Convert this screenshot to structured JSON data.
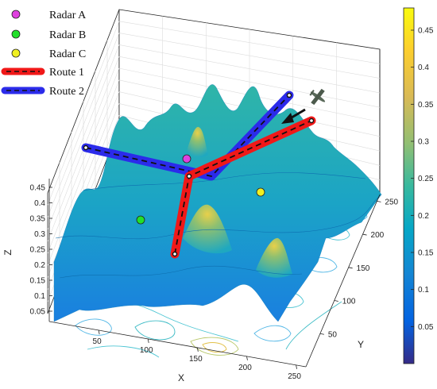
{
  "chart_data": {
    "type": "surface",
    "title": "",
    "xlabel": "X",
    "ylabel": "Y",
    "zlabel": "Z",
    "xlim": [
      0,
      260
    ],
    "ylim": [
      0,
      260
    ],
    "zlim": [
      0,
      0.48
    ],
    "x_ticks": [
      "50",
      "100",
      "150",
      "200",
      "250"
    ],
    "y_ticks": [
      "50",
      "100",
      "150",
      "200",
      "250"
    ],
    "z_ticks": [
      "0.05",
      "0.1",
      "0.15",
      "0.2",
      "0.25",
      "0.3",
      "0.35",
      "0.4",
      "0.45"
    ],
    "colorbar": {
      "range": [
        0,
        0.48
      ],
      "ticks": [
        "0.05",
        "0.1",
        "0.15",
        "0.2",
        "0.25",
        "0.3",
        "0.35",
        "0.4",
        "0.45"
      ],
      "colormap": "parula"
    },
    "grid": true,
    "contour_base": true,
    "legend": {
      "placement": "top-left",
      "entries": [
        {
          "label": "Radar A",
          "marker": "circle",
          "color": "#e040e0"
        },
        {
          "label": "Radar B",
          "marker": "circle",
          "color": "#22e02a"
        },
        {
          "label": "Radar C",
          "marker": "circle",
          "color": "#f0f020"
        },
        {
          "label": "Route 1",
          "style": "dashed-on-band",
          "color": "#f01818"
        },
        {
          "label": "Route 2",
          "style": "dashed-on-band",
          "color": "#2b2bea"
        }
      ]
    },
    "radars": [
      {
        "name": "Radar A",
        "x": 130,
        "y": 200,
        "z": 0.33
      },
      {
        "name": "Radar B",
        "x": 95,
        "y": 120,
        "z": 0.3
      },
      {
        "name": "Radar C",
        "x": 210,
        "y": 190,
        "z": 0.27
      }
    ],
    "routes": [
      {
        "name": "Route 1",
        "points": [
          [
            95,
            85,
            0.21
          ],
          [
            118,
            140,
            0.33
          ],
          [
            218,
            232,
            0.4
          ]
        ]
      },
      {
        "name": "Route 2",
        "points": [
          [
            5,
            230,
            0.38
          ],
          [
            150,
            200,
            0.33
          ],
          [
            178,
            262,
            0.44
          ]
        ]
      }
    ],
    "peaks": [
      {
        "x": 118,
        "y": 120,
        "z": 0.38
      },
      {
        "x": 150,
        "y": 60,
        "z": 0.3
      },
      {
        "x": 145,
        "y": 190,
        "z": 0.32
      }
    ]
  },
  "icons": {
    "aircraft": "airplane-icon",
    "arrow": "direction-arrow-icon"
  }
}
